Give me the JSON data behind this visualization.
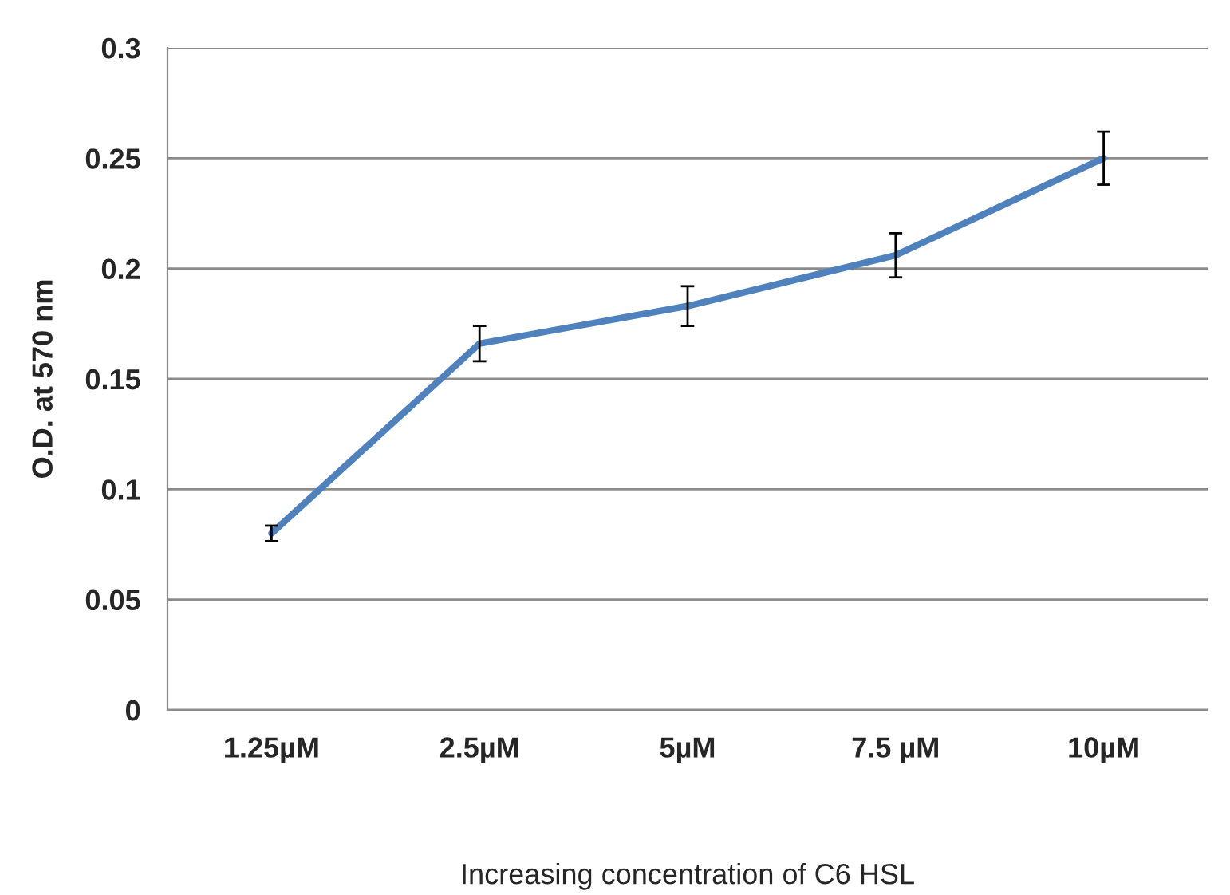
{
  "chart_data": {
    "type": "line",
    "xlabel": "Increasing concentration of C6 HSL",
    "ylabel": "O.D. at 570 nm",
    "categories": [
      "1.25µM",
      "2.5µM",
      "5µM",
      "7.5 µM",
      "10µM"
    ],
    "series": [
      {
        "color": "#4f81bd",
        "values": [
          0.08,
          0.166,
          0.183,
          0.206,
          0.25
        ],
        "errors": [
          0.0035,
          0.008,
          0.009,
          0.01,
          0.012
        ]
      }
    ],
    "ylim": [
      0,
      0.3
    ],
    "yticks": [
      0,
      0.05,
      0.1,
      0.15,
      0.2,
      0.25,
      0.3
    ],
    "grid": "y",
    "marker": "none",
    "line_style": "solid"
  }
}
